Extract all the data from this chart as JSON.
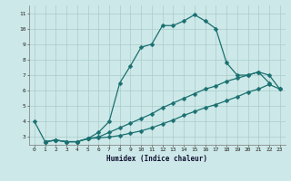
{
  "xlabel": "Humidex (Indice chaleur)",
  "xlim": [
    -0.5,
    23.5
  ],
  "ylim": [
    2.5,
    11.5
  ],
  "xticks": [
    0,
    1,
    2,
    3,
    4,
    5,
    6,
    7,
    8,
    9,
    10,
    11,
    12,
    13,
    14,
    15,
    16,
    17,
    18,
    19,
    20,
    21,
    22,
    23
  ],
  "yticks": [
    3,
    4,
    5,
    6,
    7,
    8,
    9,
    10,
    11
  ],
  "bg_color": "#cde8e8",
  "grid_color": "#aacccc",
  "line_color": "#1a7070",
  "line1_x": [
    0,
    1,
    2,
    3,
    4,
    5,
    6,
    7,
    8,
    9,
    10,
    11,
    12,
    13,
    14,
    15,
    16,
    17,
    18,
    19,
    20,
    21,
    22
  ],
  "line1_y": [
    4.0,
    2.7,
    2.8,
    2.7,
    2.7,
    2.9,
    3.3,
    4.0,
    6.5,
    7.6,
    8.8,
    9.0,
    10.2,
    10.2,
    10.5,
    10.9,
    10.5,
    10.0,
    7.8,
    7.0,
    7.0,
    7.2,
    6.5
  ],
  "line2_x": [
    1,
    2,
    3,
    4,
    5,
    6,
    7,
    8,
    9,
    10,
    11,
    12,
    13,
    14,
    15,
    16,
    17,
    18,
    19,
    20,
    21,
    22,
    23
  ],
  "line2_y": [
    2.7,
    2.8,
    2.7,
    2.7,
    2.9,
    3.0,
    3.3,
    3.6,
    3.9,
    4.2,
    4.5,
    4.9,
    5.2,
    5.5,
    5.8,
    6.1,
    6.3,
    6.6,
    6.8,
    7.0,
    7.2,
    7.0,
    6.1
  ],
  "line3_x": [
    1,
    2,
    3,
    4,
    5,
    6,
    7,
    8,
    9,
    10,
    11,
    12,
    13,
    14,
    15,
    16,
    17,
    18,
    19,
    20,
    21,
    22,
    23
  ],
  "line3_y": [
    2.7,
    2.8,
    2.7,
    2.7,
    2.9,
    2.95,
    3.0,
    3.1,
    3.25,
    3.4,
    3.6,
    3.85,
    4.1,
    4.4,
    4.65,
    4.9,
    5.1,
    5.35,
    5.6,
    5.9,
    6.1,
    6.4,
    6.1
  ]
}
